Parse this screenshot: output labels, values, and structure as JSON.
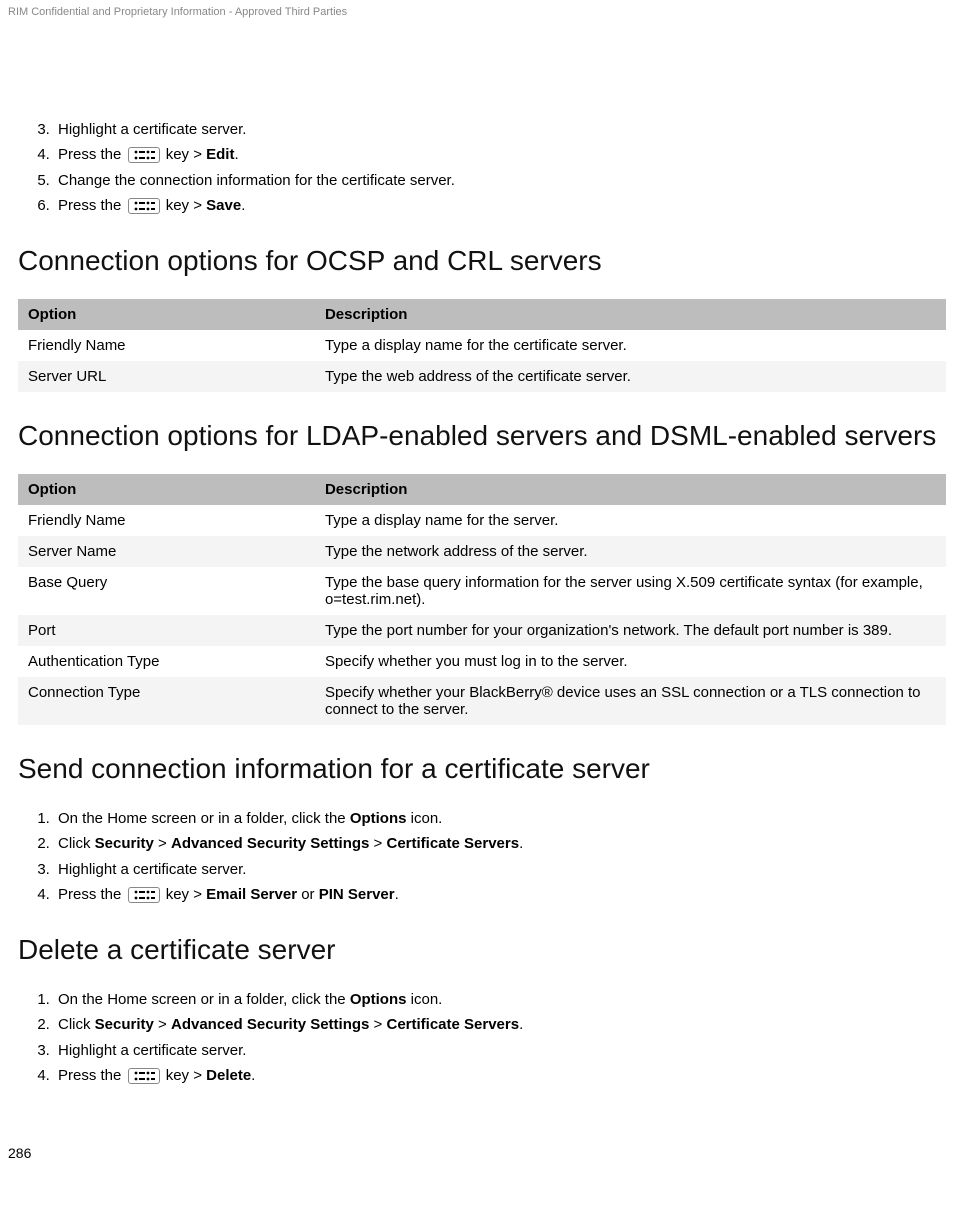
{
  "header_text": "RIM Confidential and Proprietary Information - Approved Third Parties",
  "page_number": "286",
  "steps_top": [
    {
      "n": "3.",
      "text_parts": [
        {
          "t": "Highlight a certificate server."
        }
      ]
    },
    {
      "n": "4.",
      "text_parts": [
        {
          "t": "Press the "
        },
        {
          "icon": true
        },
        {
          "t": " key > "
        },
        {
          "b": "Edit"
        },
        {
          "t": "."
        }
      ]
    },
    {
      "n": "5.",
      "text_parts": [
        {
          "t": "Change the connection information for the certificate server."
        }
      ]
    },
    {
      "n": "6.",
      "text_parts": [
        {
          "t": "Press the "
        },
        {
          "icon": true
        },
        {
          "t": " key > "
        },
        {
          "b": "Save"
        },
        {
          "t": "."
        }
      ]
    }
  ],
  "heading_ocsp": "Connection options for OCSP and CRL servers",
  "table_ocsp": {
    "headers": [
      "Option",
      "Description"
    ],
    "rows": [
      [
        "Friendly Name",
        "Type a display name for the certificate server."
      ],
      [
        "Server URL",
        "Type the web address of the certificate server."
      ]
    ]
  },
  "heading_ldap": "Connection options for LDAP-enabled servers and DSML-enabled servers",
  "table_ldap": {
    "headers": [
      "Option",
      "Description"
    ],
    "rows": [
      [
        "Friendly Name",
        "Type a display name for the server."
      ],
      [
        "Server Name",
        "Type the network address of the server."
      ],
      [
        "Base Query",
        "Type the base query information for the server using X.509 certificate syntax (for example, o=test.rim.net)."
      ],
      [
        "Port",
        "Type the port number for your organization's network. The default port number is 389."
      ],
      [
        "Authentication Type",
        "Specify whether you must log in to the server."
      ],
      [
        "Connection Type",
        "Specify whether your BlackBerry® device uses an SSL connection or a TLS connection to connect to the server."
      ]
    ]
  },
  "heading_send": "Send connection information for a certificate server",
  "steps_send": [
    {
      "n": "1.",
      "text_parts": [
        {
          "t": "On the Home screen or in a folder, click the "
        },
        {
          "b": "Options"
        },
        {
          "t": " icon."
        }
      ]
    },
    {
      "n": "2.",
      "text_parts": [
        {
          "t": "Click "
        },
        {
          "b": "Security"
        },
        {
          "t": " > "
        },
        {
          "b": "Advanced Security Settings"
        },
        {
          "t": " > "
        },
        {
          "b": "Certificate Servers"
        },
        {
          "t": "."
        }
      ]
    },
    {
      "n": "3.",
      "text_parts": [
        {
          "t": "Highlight a certificate server."
        }
      ]
    },
    {
      "n": "4.",
      "text_parts": [
        {
          "t": "Press the "
        },
        {
          "icon": true
        },
        {
          "t": " key > "
        },
        {
          "b": "Email Server"
        },
        {
          "t": " or "
        },
        {
          "b": "PIN Server"
        },
        {
          "t": "."
        }
      ]
    }
  ],
  "heading_delete": "Delete a certificate server",
  "steps_delete": [
    {
      "n": "1.",
      "text_parts": [
        {
          "t": "On the Home screen or in a folder, click the "
        },
        {
          "b": "Options"
        },
        {
          "t": " icon."
        }
      ]
    },
    {
      "n": "2.",
      "text_parts": [
        {
          "t": "Click "
        },
        {
          "b": "Security"
        },
        {
          "t": " > "
        },
        {
          "b": "Advanced Security Settings"
        },
        {
          "t": " > "
        },
        {
          "b": "Certificate Servers"
        },
        {
          "t": "."
        }
      ]
    },
    {
      "n": "3.",
      "text_parts": [
        {
          "t": "Highlight a certificate server."
        }
      ]
    },
    {
      "n": "4.",
      "text_parts": [
        {
          "t": "Press the "
        },
        {
          "icon": true
        },
        {
          "t": " key > "
        },
        {
          "b": "Delete"
        },
        {
          "t": "."
        }
      ]
    }
  ]
}
